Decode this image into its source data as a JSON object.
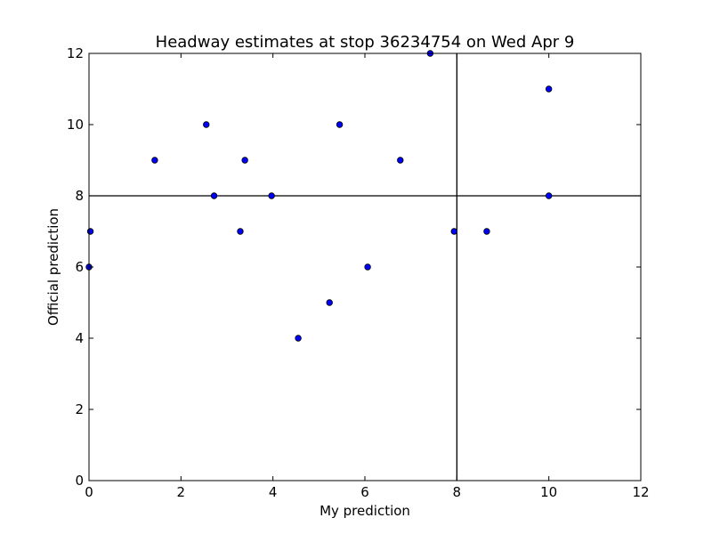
{
  "chart_data": {
    "type": "scatter",
    "title": "Headway estimates at stop 36234754 on Wed Apr 9",
    "xlabel": "My prediction",
    "ylabel": "Official prediction",
    "xlim": [
      0,
      12
    ],
    "ylim": [
      0,
      12
    ],
    "xticks": [
      "0",
      "2",
      "4",
      "6",
      "8",
      "10",
      "12"
    ],
    "yticks": [
      "0",
      "2",
      "4",
      "6",
      "8",
      "10",
      "12"
    ],
    "grid": false,
    "legend": "none",
    "reference_lines": {
      "vertical_x": 8,
      "horizontal_y": 8
    },
    "marker_color": "#0000ff",
    "marker_edge_color": "#000000",
    "line_color": "#000000",
    "points": [
      {
        "x": 0.0,
        "y": 6
      },
      {
        "x": 0.03,
        "y": 7
      },
      {
        "x": 1.43,
        "y": 9
      },
      {
        "x": 2.55,
        "y": 10
      },
      {
        "x": 2.72,
        "y": 8
      },
      {
        "x": 3.29,
        "y": 7
      },
      {
        "x": 3.39,
        "y": 9
      },
      {
        "x": 3.97,
        "y": 8
      },
      {
        "x": 4.55,
        "y": 4
      },
      {
        "x": 5.23,
        "y": 5
      },
      {
        "x": 5.45,
        "y": 10
      },
      {
        "x": 6.06,
        "y": 6
      },
      {
        "x": 6.77,
        "y": 9
      },
      {
        "x": 7.42,
        "y": 12
      },
      {
        "x": 7.94,
        "y": 7
      },
      {
        "x": 8.65,
        "y": 7
      },
      {
        "x": 10.0,
        "y": 11
      },
      {
        "x": 10.0,
        "y": 8
      }
    ]
  }
}
